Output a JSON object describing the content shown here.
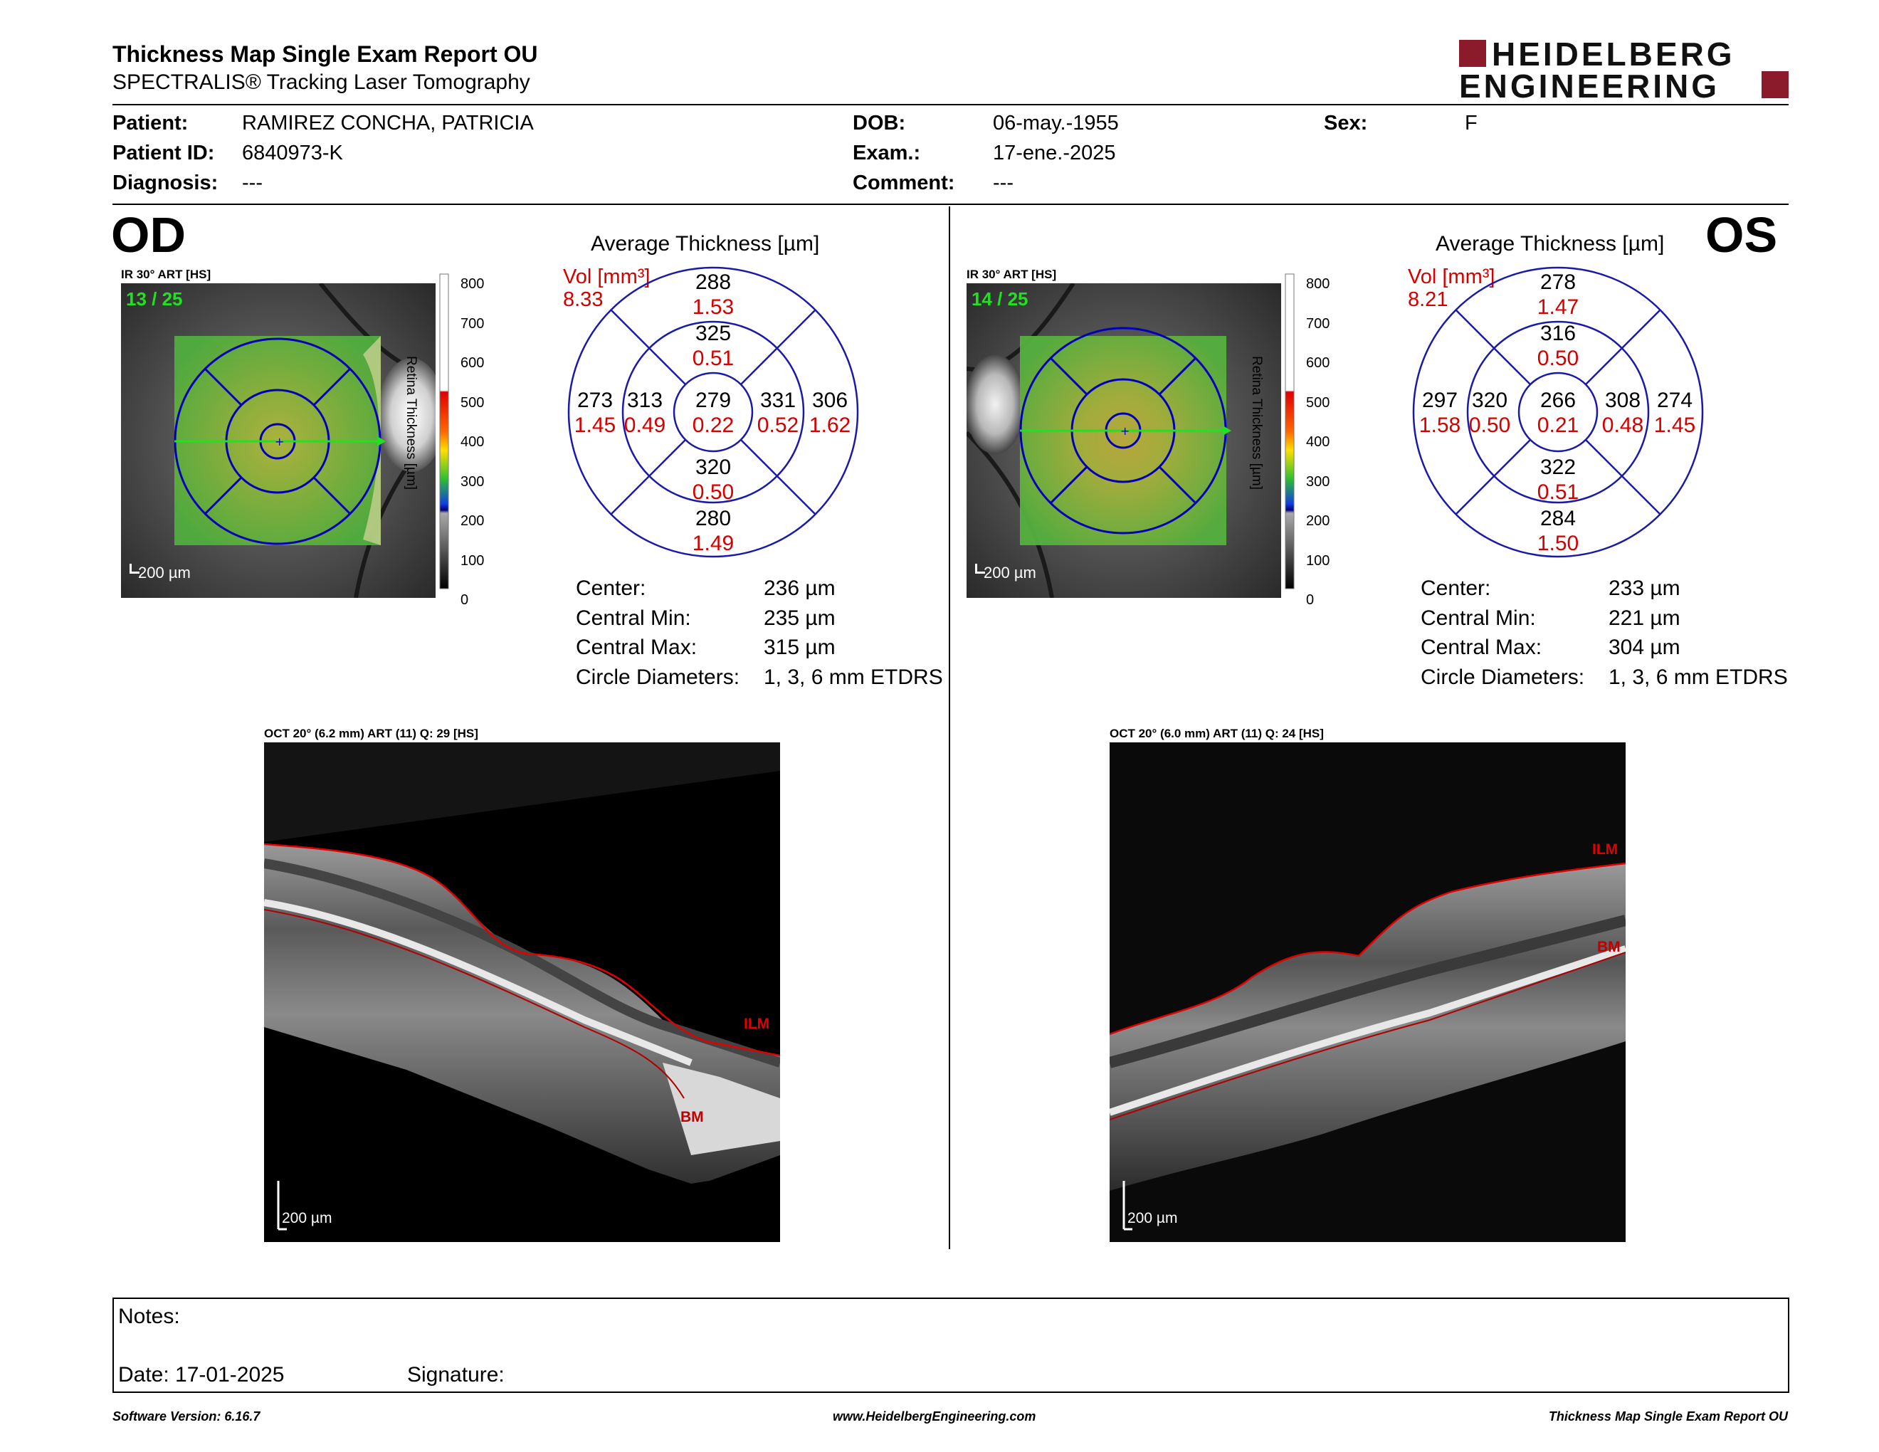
{
  "header": {
    "title": "Thickness Map Single Exam Report OU",
    "subtitle": "SPECTRALIS® Tracking Laser Tomography",
    "logo_line1": "HEIDELBERG",
    "logo_line2": "ENGINEERING"
  },
  "patient": {
    "patient_label": "Patient:",
    "patient_value": "RAMIREZ CONCHA, PATRICIA",
    "id_label": "Patient ID:",
    "id_value": "6840973-K",
    "diagnosis_label": "Diagnosis:",
    "diagnosis_value": "---",
    "dob_label": "DOB:",
    "dob_value": "06-may.-1955",
    "exam_label": "Exam.:",
    "exam_value": "17-ene.-2025",
    "comment_label": "Comment:",
    "comment_value": "---",
    "sex_label": "Sex:",
    "sex_value": "F"
  },
  "od": {
    "eye": "OD",
    "ir_label": "IR 30° ART [HS]",
    "frame": "13 / 25",
    "scale": "200 µm",
    "avg_title": "Average Thickness [µm]",
    "vol_label": "Vol [mm³]",
    "vol_total": "8.33",
    "center": {
      "thickness": "279",
      "volume": "0.22"
    },
    "inner": {
      "superior": [
        "325",
        "0.51"
      ],
      "temporal": [
        "313",
        "0.49"
      ],
      "nasal": [
        "331",
        "0.52"
      ],
      "inferior": [
        "320",
        "0.50"
      ]
    },
    "outer": {
      "superior": [
        "288",
        "1.53"
      ],
      "temporal": [
        "273",
        "1.45"
      ],
      "nasal": [
        "306",
        "1.62"
      ],
      "inferior": [
        "280",
        "1.49"
      ]
    },
    "stats": {
      "center_label": "Center:",
      "center_value": "236 µm",
      "min_label": "Central Min:",
      "min_value": "235 µm",
      "max_label": "Central Max:",
      "max_value": "315 µm",
      "circle_label": "Circle Diameters:",
      "circle_value": "1, 3, 6 mm ETDRS"
    },
    "oct_label": "OCT 20° (6.2 mm) ART (11) Q: 29 [HS]",
    "oct_scale": "200 µm",
    "ilm": "ILM",
    "bm": "BM"
  },
  "os": {
    "eye": "OS",
    "ir_label": "IR 30° ART [HS]",
    "frame": "14 / 25",
    "scale": "200 µm",
    "avg_title": "Average Thickness [µm]",
    "vol_label": "Vol [mm³]",
    "vol_total": "8.21",
    "center": {
      "thickness": "266",
      "volume": "0.21"
    },
    "inner": {
      "superior": [
        "316",
        "0.50"
      ],
      "temporal": [
        "320",
        "0.50"
      ],
      "nasal": [
        "308",
        "0.48"
      ],
      "inferior": [
        "322",
        "0.51"
      ]
    },
    "outer": {
      "superior": [
        "278",
        "1.47"
      ],
      "temporal": [
        "297",
        "1.58"
      ],
      "nasal": [
        "274",
        "1.45"
      ],
      "inferior": [
        "284",
        "1.50"
      ]
    },
    "stats": {
      "center_label": "Center:",
      "center_value": "233 µm",
      "min_label": "Central Min:",
      "min_value": "221 µm",
      "max_label": "Central Max:",
      "max_value": "304 µm",
      "circle_label": "Circle Diameters:",
      "circle_value": "1, 3, 6 mm ETDRS"
    },
    "oct_label": "OCT 20° (6.0 mm) ART (11) Q: 24 [HS]",
    "oct_scale": "200 µm",
    "ilm": "ILM",
    "bm": "BM"
  },
  "colorbar": {
    "ticks": [
      "800",
      "700",
      "600",
      "500",
      "400",
      "300",
      "200",
      "100",
      "0"
    ],
    "axis_label": "Retina Thickness [µm]"
  },
  "notes": {
    "notes_label": "Notes:",
    "date_label": "Date: 17-01-2025",
    "signature_label": "Signature:"
  },
  "footer": {
    "left": "Software Version: 6.16.7",
    "center": "www.HeidelbergEngineering.com",
    "right": "Thickness Map Single Exam Report OU"
  },
  "colors": {
    "accent_red": "#d40000",
    "grid_blue": "#1a1aa8",
    "logo_red": "#8b1a2a"
  }
}
